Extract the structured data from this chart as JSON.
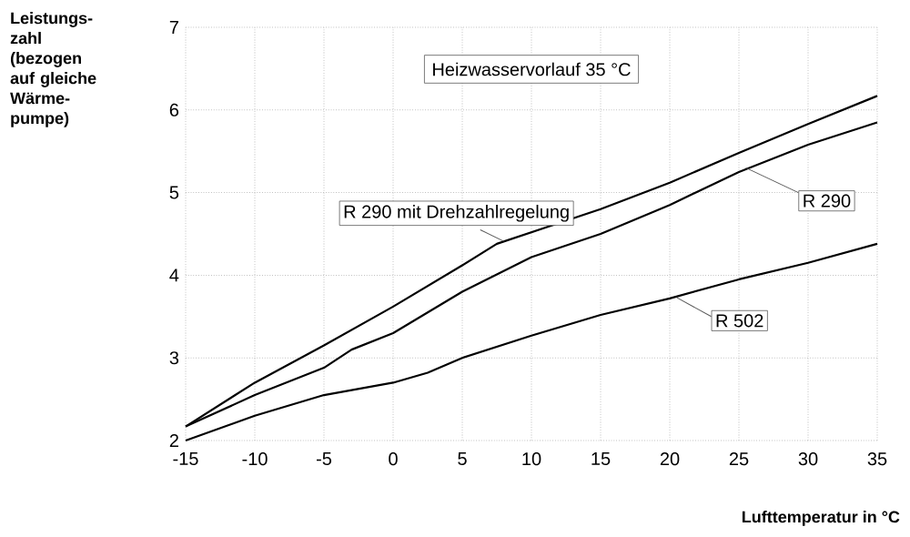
{
  "chart_data": {
    "type": "line",
    "ylabel": "Leistungs-zahl (bezogen auf gleiche Wärme-pumpe)",
    "xlabel": "Lufttemperatur in °C",
    "annotations": [
      "Heizwasservorlauf 35 °C"
    ],
    "x": [
      -15,
      -10,
      -5,
      0,
      5,
      7.5,
      10,
      15,
      20,
      25,
      30,
      35
    ],
    "series": [
      {
        "name": "R 290 mit Drehzahlregelung",
        "color": "#000000",
        "values": [
          2.17,
          2.7,
          3.15,
          3.62,
          4.12,
          4.38,
          4.52,
          4.8,
          5.12,
          5.48,
          5.83,
          6.17
        ]
      },
      {
        "name": "R 290",
        "color": "#000000",
        "x": [
          -15,
          -10,
          -5,
          -3,
          0,
          5,
          10,
          15,
          20,
          25,
          30,
          35
        ],
        "values": [
          2.17,
          2.55,
          2.88,
          3.1,
          3.3,
          3.8,
          4.22,
          4.5,
          4.85,
          5.25,
          5.58,
          5.85
        ]
      },
      {
        "name": "R 502",
        "color": "#000000",
        "x": [
          -15,
          -10,
          -5,
          0,
          2.5,
          5,
          10,
          15,
          20,
          25,
          30,
          35
        ],
        "values": [
          2.0,
          2.3,
          2.55,
          2.7,
          2.82,
          3.0,
          3.27,
          3.52,
          3.72,
          3.95,
          4.15,
          4.38
        ]
      }
    ],
    "xlim": [
      -15,
      35
    ],
    "ylim": [
      2,
      7
    ],
    "xticks": [
      -15,
      -10,
      -5,
      0,
      5,
      10,
      15,
      20,
      25,
      30,
      35
    ],
    "yticks": [
      2,
      3,
      4,
      5,
      6,
      7
    ],
    "grid": true,
    "line_style": "solid",
    "marker": "none"
  }
}
